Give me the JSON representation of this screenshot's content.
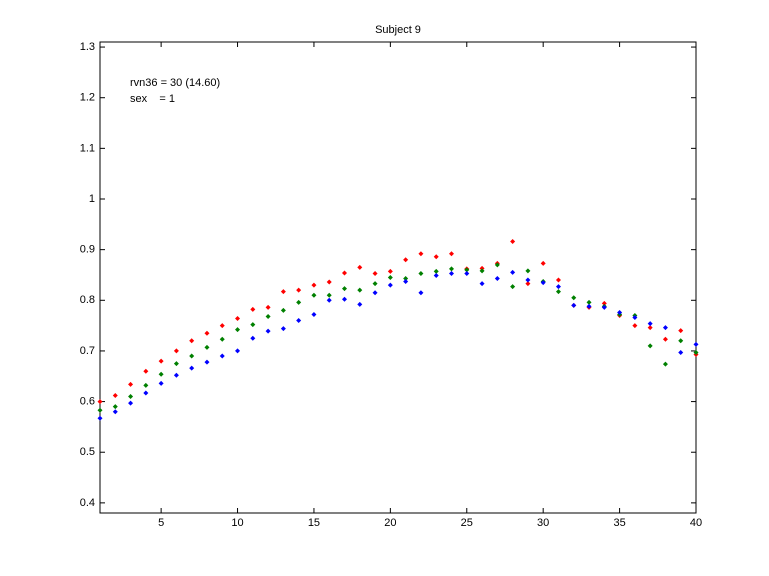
{
  "chart_data": {
    "type": "scatter",
    "title": "Subject 9",
    "annotations": [
      "rvn36 = 30 (14.60)",
      "sex    = 1"
    ],
    "x": [
      1,
      2,
      3,
      4,
      5,
      6,
      7,
      8,
      9,
      10,
      11,
      12,
      13,
      14,
      15,
      16,
      17,
      18,
      19,
      20,
      21,
      22,
      23,
      24,
      25,
      26,
      27,
      28,
      29,
      30,
      31,
      32,
      33,
      34,
      35,
      36,
      37,
      38,
      39,
      40
    ],
    "series": [
      {
        "color": "#ff0000",
        "values": [
          0.6,
          0.612,
          0.634,
          0.66,
          0.68,
          0.7,
          0.72,
          0.735,
          0.75,
          0.764,
          0.782,
          0.786,
          0.817,
          0.82,
          0.83,
          0.836,
          0.854,
          0.865,
          0.853,
          0.857,
          0.88,
          0.892,
          0.886,
          0.892,
          0.862,
          0.863,
          0.873,
          0.916,
          0.833,
          0.873,
          0.84,
          0.79,
          0.786,
          0.794,
          0.77,
          0.75,
          0.746,
          0.723,
          0.74,
          0.693
        ]
      },
      {
        "color": "#008000",
        "values": [
          0.583,
          0.59,
          0.61,
          0.632,
          0.654,
          0.675,
          0.69,
          0.707,
          0.723,
          0.742,
          0.752,
          0.768,
          0.78,
          0.796,
          0.81,
          0.81,
          0.823,
          0.82,
          0.833,
          0.845,
          0.843,
          0.853,
          0.857,
          0.862,
          0.86,
          0.858,
          0.87,
          0.827,
          0.858,
          0.837,
          0.817,
          0.805,
          0.796,
          0.788,
          0.772,
          0.77,
          0.71,
          0.674,
          0.72,
          0.697
        ]
      },
      {
        "color": "#0000ff",
        "values": [
          0.567,
          0.58,
          0.597,
          0.617,
          0.636,
          0.652,
          0.666,
          0.678,
          0.69,
          0.7,
          0.725,
          0.739,
          0.744,
          0.76,
          0.772,
          0.8,
          0.802,
          0.792,
          0.815,
          0.83,
          0.837,
          0.815,
          0.849,
          0.853,
          0.853,
          0.833,
          0.843,
          0.855,
          0.84,
          0.835,
          0.827,
          0.79,
          0.788,
          0.786,
          0.776,
          0.766,
          0.754,
          0.746,
          0.697,
          0.713
        ]
      }
    ],
    "xlim": [
      1,
      40
    ],
    "xticks": [
      5,
      10,
      15,
      20,
      25,
      30,
      35,
      40
    ],
    "ylim": [
      0.38,
      1.31
    ],
    "yticks": [
      0.4,
      0.5,
      0.6,
      0.7,
      0.8,
      0.9,
      1,
      1.1,
      1.2,
      1.3
    ],
    "grid": false
  }
}
